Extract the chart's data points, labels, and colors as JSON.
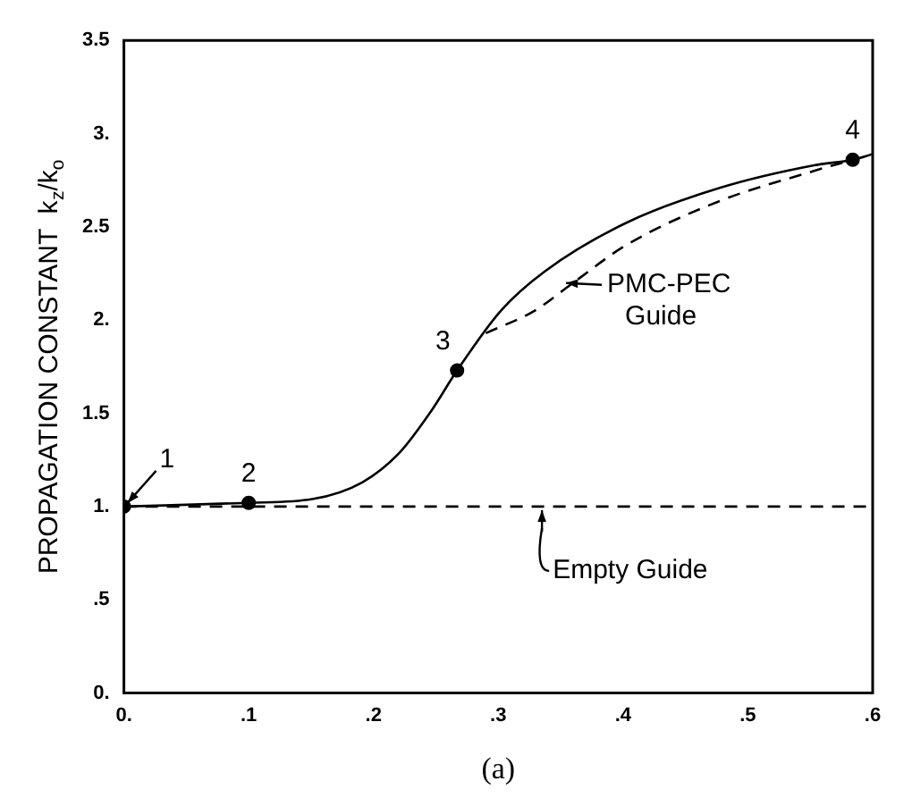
{
  "chart_data": {
    "type": "line",
    "ylabel": "PROPAGATION CONSTANT  k$_{z}$/k$_{o}$",
    "xlim": [
      0,
      0.6
    ],
    "ylim": [
      0,
      3.5
    ],
    "xticks": [
      {
        "value": 0,
        "label": "0."
      },
      {
        "value": 0.1,
        "label": ".1"
      },
      {
        "value": 0.2,
        "label": ".2"
      },
      {
        "value": 0.3,
        "label": ".3"
      },
      {
        "value": 0.4,
        "label": ".4"
      },
      {
        "value": 0.5,
        "label": ".5"
      },
      {
        "value": 0.6,
        "label": ".6"
      }
    ],
    "yticks": [
      {
        "value": 0,
        "label": "0."
      },
      {
        "value": 0.5,
        "label": ".5"
      },
      {
        "value": 1,
        "label": "1."
      },
      {
        "value": 1.5,
        "label": "1.5"
      },
      {
        "value": 2,
        "label": "2."
      },
      {
        "value": 2.5,
        "label": "2.5"
      },
      {
        "value": 3,
        "label": "3."
      },
      {
        "value": 3.5,
        "label": "3.5"
      }
    ],
    "grid": false,
    "legend": false,
    "series": [
      {
        "line_style": "solid",
        "color": "#000000",
        "x": [
          0,
          0.1,
          0.151,
          0.191,
          0.221,
          0.246,
          0.267,
          0.302,
          0.337,
          0.402,
          0.478,
          0.553,
          0.584,
          0.6
        ],
        "values": [
          1,
          1.02,
          1.04,
          1.13,
          1.29,
          1.51,
          1.73,
          2.05,
          2.26,
          2.52,
          2.71,
          2.83,
          2.86,
          2.89
        ]
      },
      {
        "type": "line",
        "line_style": "dashed",
        "color": "#000000",
        "x": [
          0.29,
          0.329,
          0.36,
          0.402,
          0.478,
          0.553,
          0.584
        ],
        "values": [
          1.93,
          2.05,
          2.2,
          2.4,
          2.64,
          2.8,
          2.86
        ]
      },
      {
        "type": "line",
        "line_style": "dashed",
        "color": "#000000",
        "x": [
          0,
          0.6
        ],
        "values": [
          1,
          1
        ]
      },
      {
        "type": "scatter",
        "marker": "circle",
        "color": "#000000",
        "x": [
          0,
          0.1,
          0.267,
          0.584
        ],
        "values": [
          1,
          1.02,
          1.73,
          2.86
        ]
      }
    ],
    "annotations": [
      {
        "text": "1",
        "x": 0,
        "y": 1
      },
      {
        "text": "2",
        "x": 0.1,
        "y": 1.02
      },
      {
        "text": "3",
        "x": 0.267,
        "y": 1.73
      },
      {
        "text": "4",
        "x": 0.584,
        "y": 2.86
      },
      {
        "text": "PMC-PEC Guide",
        "x": 0.35,
        "y": 2.17
      },
      {
        "text": "Empty Guide",
        "x": 0.335,
        "y": 1
      },
      "(a)"
    ]
  }
}
